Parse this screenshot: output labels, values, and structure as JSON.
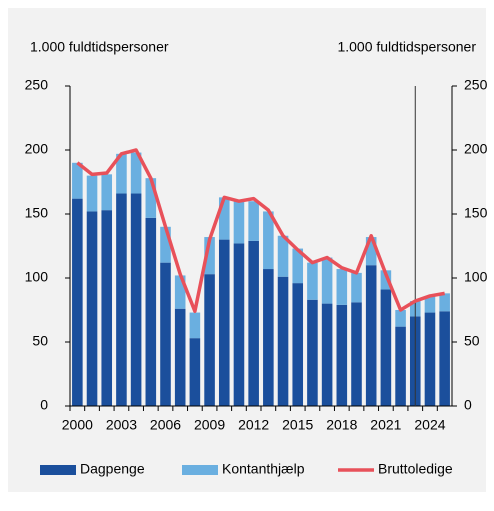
{
  "chart_data": {
    "type": "bar",
    "y_label": "1.000 fuldtidspersoner",
    "y2_label": "1.000 fuldtidspersoner",
    "categories": [
      "2000",
      "2001",
      "2002",
      "2003",
      "2004",
      "2005",
      "2006",
      "2007",
      "2008",
      "2009",
      "2010",
      "2011",
      "2012",
      "2013",
      "2014",
      "2015",
      "2016",
      "2017",
      "2018",
      "2019",
      "2020",
      "2021",
      "2022",
      "2023",
      "2024",
      "2025"
    ],
    "series": [
      {
        "name": "Dagpenge",
        "color": "#1b4f9c",
        "kind": "bar",
        "values": [
          162,
          152,
          153,
          166,
          166,
          147,
          112,
          76,
          53,
          103,
          130,
          127,
          129,
          107,
          101,
          96,
          83,
          80,
          79,
          81,
          110,
          91,
          62,
          70,
          73,
          74
        ]
      },
      {
        "name": "Kontanthjælp",
        "color": "#6aafe0",
        "kind": "bar",
        "values": [
          28,
          28,
          28,
          31,
          32,
          31,
          28,
          26,
          20,
          29,
          33,
          33,
          31,
          45,
          32,
          27,
          29,
          36,
          28,
          23,
          22,
          15,
          13,
          12,
          13,
          14
        ]
      },
      {
        "name": "Bruttoledige",
        "color": "#e8515a",
        "kind": "line",
        "values": [
          190,
          181,
          182,
          197,
          200,
          178,
          140,
          103,
          74,
          130,
          163,
          160,
          162,
          153,
          133,
          122,
          112,
          116,
          108,
          104,
          133,
          103,
          75,
          82,
          86,
          88
        ]
      }
    ],
    "ylim": [
      0,
      250
    ],
    "yticks": [
      0,
      50,
      100,
      150,
      200,
      250
    ],
    "y2lim": [
      0,
      250
    ],
    "y2ticks": [
      0,
      50,
      100,
      150,
      200,
      250
    ],
    "legend": "bottom"
  }
}
